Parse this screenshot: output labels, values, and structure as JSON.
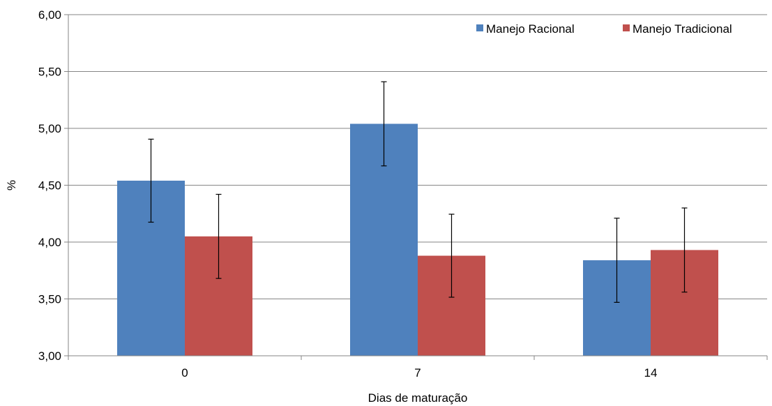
{
  "chart_data": {
    "type": "bar",
    "title": "",
    "xlabel": "Dias de maturação",
    "ylabel": "%",
    "categories": [
      "0",
      "7",
      "14"
    ],
    "ylim": [
      3.0,
      6.0
    ],
    "yticks": [
      3.0,
      3.5,
      4.0,
      4.5,
      5.0,
      5.5,
      6.0
    ],
    "ytick_labels": [
      "3,00",
      "3,50",
      "4,00",
      "4,50",
      "5,00",
      "5,50",
      "6,00"
    ],
    "grid": "horizontal",
    "legend_position": "top-right",
    "series": [
      {
        "name": "Manejo Racional",
        "color": "#4F81BD",
        "values": [
          4.54,
          5.04,
          3.84
        ],
        "error": [
          0.365,
          0.37,
          0.37
        ]
      },
      {
        "name": "Manejo Tradicional",
        "color": "#C0504D",
        "values": [
          4.05,
          3.88,
          3.93
        ],
        "error": [
          0.37,
          0.365,
          0.37
        ]
      }
    ]
  }
}
